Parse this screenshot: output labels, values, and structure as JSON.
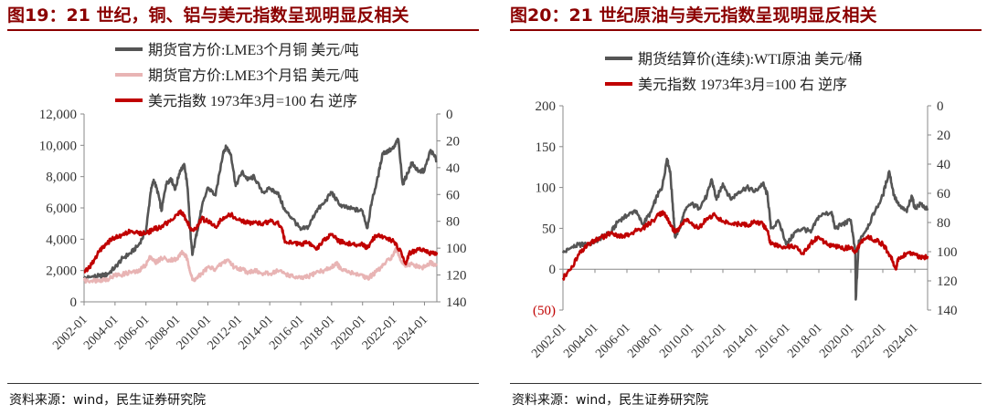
{
  "left": {
    "title": "图19：21 世纪，铜、铝与美元指数呈现明显反相关",
    "source": "资料来源：wind，民生证券研究院",
    "chart_data": {
      "type": "line",
      "x_ticks": [
        "2002-01",
        "2004-01",
        "2006-01",
        "2008-01",
        "2010-01",
        "2012-01",
        "2014-01",
        "2016-01",
        "2018-01",
        "2020-01",
        "2022-01",
        "2024-01"
      ],
      "xlim": [
        2002.0,
        2024.8
      ],
      "y_left": {
        "ticks": [
          "0",
          "2,000",
          "4,000",
          "6,000",
          "8,000",
          "10,000",
          "12,000"
        ],
        "ylim": [
          0,
          12000
        ]
      },
      "y_right": {
        "ticks": [
          "0",
          "20",
          "40",
          "60",
          "80",
          "100",
          "120",
          "140"
        ],
        "ylim": [
          0,
          140
        ],
        "reversed": true
      },
      "legend_position": "top-center",
      "series": [
        {
          "name": "期货官方价:LME3个月铜 美元/吨",
          "axis": "left",
          "color": "#555555",
          "x": [
            2002.0,
            2002.5,
            2003.0,
            2003.5,
            2004.0,
            2004.5,
            2005.0,
            2005.5,
            2006.0,
            2006.3,
            2006.5,
            2006.8,
            2007.0,
            2007.3,
            2007.6,
            2007.9,
            2008.2,
            2008.5,
            2008.7,
            2008.9,
            2009.0,
            2009.3,
            2009.6,
            2010.0,
            2010.5,
            2011.0,
            2011.2,
            2011.5,
            2011.8,
            2012.2,
            2012.6,
            2013.0,
            2013.5,
            2014.0,
            2014.5,
            2015.0,
            2015.5,
            2016.0,
            2016.5,
            2017.0,
            2017.5,
            2018.0,
            2018.5,
            2019.0,
            2019.5,
            2020.0,
            2020.3,
            2020.6,
            2021.0,
            2021.3,
            2021.6,
            2022.0,
            2022.3,
            2022.6,
            2022.9,
            2023.2,
            2023.6,
            2024.0,
            2024.4,
            2024.8
          ],
          "y": [
            1500,
            1600,
            1650,
            1750,
            2200,
            2800,
            3100,
            3600,
            4500,
            7000,
            7800,
            6900,
            5800,
            7500,
            7900,
            7200,
            8400,
            8700,
            7200,
            4000,
            3000,
            4500,
            6000,
            7300,
            6800,
            9600,
            9900,
            9400,
            7400,
            8300,
            7800,
            8000,
            7000,
            7200,
            7000,
            5800,
            5300,
            4600,
            4800,
            5800,
            6300,
            7000,
            6200,
            6000,
            5900,
            5800,
            4700,
            6400,
            8000,
            9500,
            9600,
            9800,
            10400,
            7500,
            8200,
            8900,
            8300,
            8400,
            9700,
            9000
          ]
        },
        {
          "name": "期货官方价:LME3个月铝 美元/吨",
          "axis": "left",
          "color": "#e8b4b4",
          "x": [
            2002.0,
            2002.5,
            2003.0,
            2003.5,
            2004.0,
            2004.5,
            2005.0,
            2005.5,
            2006.0,
            2006.3,
            2006.6,
            2007.0,
            2007.5,
            2008.0,
            2008.3,
            2008.6,
            2008.8,
            2009.0,
            2009.3,
            2009.6,
            2010.0,
            2010.5,
            2011.0,
            2011.3,
            2011.7,
            2012.2,
            2012.6,
            2013.0,
            2013.5,
            2014.0,
            2014.5,
            2015.0,
            2015.5,
            2016.0,
            2016.5,
            2017.0,
            2017.5,
            2018.0,
            2018.3,
            2018.6,
            2019.0,
            2019.5,
            2020.0,
            2020.3,
            2020.6,
            2021.0,
            2021.5,
            2022.0,
            2022.2,
            2022.5,
            2022.8,
            2023.2,
            2023.6,
            2024.0,
            2024.4,
            2024.8
          ],
          "y": [
            1350,
            1350,
            1400,
            1450,
            1700,
            1750,
            1900,
            1900,
            2400,
            2900,
            2500,
            2800,
            2700,
            2700,
            3200,
            2900,
            2200,
            1400,
            1500,
            1800,
            2200,
            2100,
            2500,
            2700,
            2200,
            2100,
            1900,
            2000,
            1800,
            1800,
            2000,
            1800,
            1600,
            1500,
            1600,
            1900,
            2000,
            2200,
            2500,
            2100,
            1900,
            1800,
            1700,
            1500,
            1700,
            2000,
            2500,
            3000,
            3400,
            2600,
            2300,
            2400,
            2200,
            2200,
            2500,
            2300
          ]
        },
        {
          "name": "美元指数 1973年3月=100 右 逆序",
          "axis": "right",
          "color": "#c00000",
          "x": [
            2002.0,
            2002.5,
            2003.0,
            2003.5,
            2004.0,
            2004.5,
            2005.0,
            2005.5,
            2006.0,
            2006.5,
            2007.0,
            2007.5,
            2008.0,
            2008.3,
            2008.6,
            2008.9,
            2009.2,
            2009.6,
            2010.0,
            2010.5,
            2011.0,
            2011.5,
            2012.0,
            2012.5,
            2013.0,
            2013.5,
            2014.0,
            2014.5,
            2014.8,
            2015.0,
            2015.5,
            2016.0,
            2016.5,
            2017.0,
            2017.5,
            2018.0,
            2018.5,
            2019.0,
            2019.5,
            2020.0,
            2020.3,
            2020.6,
            2021.0,
            2021.5,
            2022.0,
            2022.5,
            2022.8,
            2023.0,
            2023.5,
            2024.0,
            2024.5,
            2024.8
          ],
          "y": [
            118,
            112,
            102,
            96,
            92,
            90,
            87,
            89,
            89,
            86,
            84,
            80,
            75,
            73,
            79,
            85,
            86,
            78,
            80,
            84,
            77,
            75,
            79,
            81,
            81,
            82,
            80,
            81,
            86,
            95,
            96,
            97,
            96,
            101,
            94,
            90,
            95,
            96,
            98,
            97,
            100,
            94,
            90,
            92,
            95,
            103,
            112,
            104,
            101,
            102,
            104,
            103
          ]
        }
      ]
    }
  },
  "right": {
    "title": "图20：21 世纪原油与美元指数呈现明显反相关",
    "source": "资料来源：wind，民生证券研究院",
    "chart_data": {
      "type": "line",
      "x_ticks": [
        "2002-01",
        "2004-01",
        "2006-01",
        "2008-01",
        "2010-01",
        "2012-01",
        "2014-01",
        "2016-01",
        "2018-01",
        "2020-01",
        "2022-01",
        "2024-01"
      ],
      "xlim": [
        2002.0,
        2024.8
      ],
      "y_left": {
        "ticks": [
          "(50)",
          "0",
          "50",
          "100",
          "150",
          "200"
        ],
        "ylim": [
          -50,
          200
        ],
        "negative_color": "#c00000"
      },
      "y_right": {
        "ticks": [
          "0",
          "20",
          "40",
          "60",
          "80",
          "100",
          "120",
          "140"
        ],
        "ylim": [
          0,
          140
        ],
        "reversed": true
      },
      "legend_position": "top-center",
      "series": [
        {
          "name": "期货结算价(连续):WTI原油 美元/桶",
          "axis": "left",
          "color": "#555555",
          "x": [
            2002.0,
            2002.5,
            2003.0,
            2003.5,
            2004.0,
            2004.5,
            2005.0,
            2005.5,
            2006.0,
            2006.5,
            2007.0,
            2007.5,
            2007.9,
            2008.2,
            2008.5,
            2008.7,
            2008.9,
            2009.0,
            2009.3,
            2009.6,
            2010.0,
            2010.5,
            2011.0,
            2011.3,
            2011.6,
            2012.0,
            2012.5,
            2013.0,
            2013.5,
            2014.0,
            2014.5,
            2014.8,
            2015.0,
            2015.5,
            2016.0,
            2016.5,
            2017.0,
            2017.5,
            2018.0,
            2018.8,
            2019.0,
            2019.5,
            2020.0,
            2020.28,
            2020.31,
            2020.5,
            2021.0,
            2021.5,
            2022.0,
            2022.4,
            2022.7,
            2023.0,
            2023.5,
            2023.8,
            2024.0,
            2024.4,
            2024.8
          ],
          "y": [
            20,
            26,
            30,
            30,
            34,
            40,
            45,
            60,
            65,
            72,
            55,
            70,
            90,
            100,
            135,
            120,
            70,
            40,
            50,
            70,
            80,
            75,
            90,
            110,
            85,
            105,
            85,
            95,
            100,
            95,
            105,
            90,
            50,
            58,
            30,
            45,
            50,
            45,
            65,
            70,
            50,
            55,
            60,
            20,
            -37,
            35,
            50,
            70,
            90,
            120,
            90,
            78,
            70,
            90,
            75,
            80,
            72
          ]
        },
        {
          "name": "美元指数 1973年3月=100 右 逆序",
          "axis": "right",
          "color": "#c00000",
          "x": [
            2002.0,
            2002.5,
            2003.0,
            2003.5,
            2004.0,
            2004.5,
            2005.0,
            2005.5,
            2006.0,
            2006.5,
            2007.0,
            2007.5,
            2008.0,
            2008.3,
            2008.6,
            2008.9,
            2009.2,
            2009.6,
            2010.0,
            2010.5,
            2011.0,
            2011.5,
            2012.0,
            2012.5,
            2013.0,
            2013.5,
            2014.0,
            2014.5,
            2014.8,
            2015.0,
            2015.5,
            2016.0,
            2016.5,
            2017.0,
            2017.5,
            2018.0,
            2018.5,
            2019.0,
            2019.5,
            2020.0,
            2020.3,
            2020.6,
            2021.0,
            2021.5,
            2022.0,
            2022.5,
            2022.8,
            2023.0,
            2023.5,
            2024.0,
            2024.5,
            2024.8
          ],
          "y": [
            118,
            112,
            102,
            96,
            92,
            90,
            87,
            89,
            89,
            86,
            84,
            80,
            75,
            73,
            79,
            85,
            86,
            78,
            80,
            84,
            77,
            75,
            79,
            81,
            81,
            82,
            80,
            81,
            86,
            95,
            96,
            97,
            96,
            101,
            94,
            90,
            95,
            96,
            98,
            97,
            100,
            94,
            90,
            92,
            95,
            103,
            112,
            104,
            101,
            102,
            104,
            103
          ]
        }
      ]
    }
  }
}
